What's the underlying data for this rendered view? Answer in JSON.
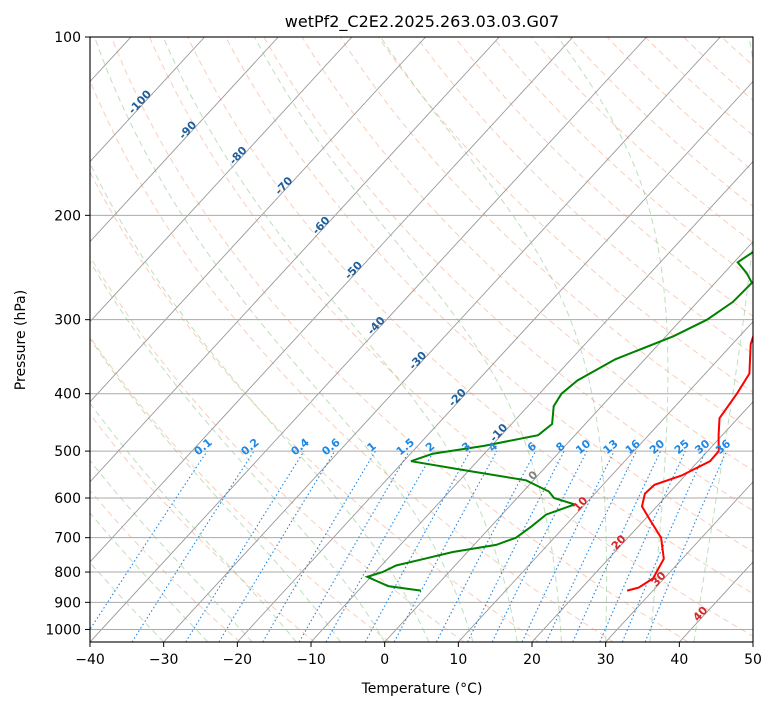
{
  "chart_data": {
    "type": "line",
    "title": "wetPf2_C2E2.2025.263.03.03.G07",
    "xlabel": "Temperature (°C)",
    "ylabel": "Pressure (hPa)",
    "xlim": [
      -40,
      50
    ],
    "ylim": [
      1050,
      100
    ],
    "x_ticks": [
      -40,
      -30,
      -20,
      -10,
      0,
      10,
      20,
      30,
      40,
      50
    ],
    "x_tick_labels": [
      "−40",
      "−30",
      "−20",
      "−10",
      "0",
      "10",
      "20",
      "30",
      "40",
      "50"
    ],
    "y_ticks": [
      100,
      200,
      300,
      400,
      500,
      600,
      700,
      800,
      900,
      1000
    ],
    "y_tick_labels": [
      "100",
      "200",
      "300",
      "400",
      "500",
      "600",
      "700",
      "800",
      "900",
      "1000"
    ],
    "series": [
      {
        "name": "Temperature",
        "color": "#ff0000",
        "points": [
          {
            "p": 860,
            "t": 26.5
          },
          {
            "p": 850,
            "t": 27.7
          },
          {
            "p": 820,
            "t": 28.5
          },
          {
            "p": 790,
            "t": 28.0
          },
          {
            "p": 760,
            "t": 27.5
          },
          {
            "p": 700,
            "t": 24.5
          },
          {
            "p": 650,
            "t": 20.5
          },
          {
            "p": 620,
            "t": 18.0
          },
          {
            "p": 590,
            "t": 16.8
          },
          {
            "p": 570,
            "t": 17.0
          },
          {
            "p": 550,
            "t": 19.5
          },
          {
            "p": 520,
            "t": 21.6
          },
          {
            "p": 500,
            "t": 21.5
          },
          {
            "p": 470,
            "t": 19.5
          },
          {
            "p": 440,
            "t": 17.5
          },
          {
            "p": 400,
            "t": 16.8
          },
          {
            "p": 370,
            "t": 16.0
          },
          {
            "p": 330,
            "t": 12.5
          },
          {
            "p": 300,
            "t": 10.5
          },
          {
            "p": 280,
            "t": 9.9
          },
          {
            "p": 260,
            "t": 9.0
          },
          {
            "p": 240,
            "t": 6.0
          },
          {
            "p": 220,
            "t": 3.0
          },
          {
            "p": 200,
            "t": 0.6
          },
          {
            "p": 180,
            "t": -1.8
          },
          {
            "p": 160,
            "t": -2.5
          },
          {
            "p": 150,
            "t": -2.0
          },
          {
            "p": 140,
            "t": -1.0
          },
          {
            "p": 130,
            "t": 0.5
          },
          {
            "p": 120,
            "t": 3.0
          },
          {
            "p": 110,
            "t": 6.0
          },
          {
            "p": 105,
            "t": 6.5
          },
          {
            "p": 100,
            "t": 7.5
          }
        ]
      },
      {
        "name": "Dewpoint",
        "color": "#008000",
        "points": [
          {
            "p": 860,
            "t": -1.5
          },
          {
            "p": 845,
            "t": -6.5
          },
          {
            "p": 830,
            "t": -8.5
          },
          {
            "p": 815,
            "t": -10.5
          },
          {
            "p": 800,
            "t": -9.0
          },
          {
            "p": 780,
            "t": -8.0
          },
          {
            "p": 760,
            "t": -5.0
          },
          {
            "p": 740,
            "t": -2.0
          },
          {
            "p": 720,
            "t": 3.0
          },
          {
            "p": 700,
            "t": 4.8
          },
          {
            "p": 670,
            "t": 5.5
          },
          {
            "p": 640,
            "t": 6.0
          },
          {
            "p": 615,
            "t": 8.6
          },
          {
            "p": 600,
            "t": 5.0
          },
          {
            "p": 585,
            "t": 3.5
          },
          {
            "p": 560,
            "t": -1.0
          },
          {
            "p": 540,
            "t": -10.0
          },
          {
            "p": 520,
            "t": -19.0
          },
          {
            "p": 505,
            "t": -17.0
          },
          {
            "p": 490,
            "t": -11.0
          },
          {
            "p": 470,
            "t": -5.0
          },
          {
            "p": 450,
            "t": -4.5
          },
          {
            "p": 420,
            "t": -6.5
          },
          {
            "p": 400,
            "t": -7.0
          },
          {
            "p": 380,
            "t": -6.5
          },
          {
            "p": 350,
            "t": -4.0
          },
          {
            "p": 320,
            "t": 1.0
          },
          {
            "p": 300,
            "t": 3.5
          },
          {
            "p": 280,
            "t": 4.8
          },
          {
            "p": 260,
            "t": 5.0
          },
          {
            "p": 250,
            "t": 3.0
          },
          {
            "p": 240,
            "t": 0.5
          },
          {
            "p": 225,
            "t": 1.8
          },
          {
            "p": 215,
            "t": 0.5
          },
          {
            "p": 200,
            "t": -1.5
          },
          {
            "p": 180,
            "t": -4.5
          },
          {
            "p": 170,
            "t": -5.5
          },
          {
            "p": 160,
            "t": -5.0
          },
          {
            "p": 150,
            "t": -4.0
          },
          {
            "p": 140,
            "t": -4.5
          },
          {
            "p": 130,
            "t": -4.5
          },
          {
            "p": 120,
            "t": -5.0
          },
          {
            "p": 110,
            "t": -3.0
          },
          {
            "p": 100,
            "t": -0.5
          }
        ]
      }
    ],
    "isotherm_labels": [
      {
        "t": -100,
        "label": "-100"
      },
      {
        "t": -90,
        "label": "-90"
      },
      {
        "t": -80,
        "label": "-80"
      },
      {
        "t": -70,
        "label": "-70"
      },
      {
        "t": -60,
        "label": "-60"
      },
      {
        "t": -50,
        "label": "-50"
      },
      {
        "t": -40,
        "label": "-40"
      },
      {
        "t": -30,
        "label": "-30"
      },
      {
        "t": -20,
        "label": "-20"
      },
      {
        "t": -10,
        "label": "-10"
      }
    ],
    "isotherm_labels_warm": [
      {
        "t": 0,
        "label": "0"
      },
      {
        "t": 10,
        "label": "10"
      },
      {
        "t": 20,
        "label": "20"
      },
      {
        "t": 30,
        "label": "30"
      },
      {
        "t": 40,
        "label": "40"
      }
    ],
    "mixing_ratios": [
      {
        "w": 0.1,
        "label": "0.1"
      },
      {
        "w": 0.2,
        "label": "0.2"
      },
      {
        "w": 0.4,
        "label": "0.4"
      },
      {
        "w": 0.6,
        "label": "0.6"
      },
      {
        "w": 1,
        "label": "1"
      },
      {
        "w": 1.5,
        "label": "1.5"
      },
      {
        "w": 2,
        "label": "2"
      },
      {
        "w": 3,
        "label": "3"
      },
      {
        "w": 4,
        "label": "4"
      },
      {
        "w": 6,
        "label": "6"
      },
      {
        "w": 8,
        "label": "8"
      },
      {
        "w": 10,
        "label": "10"
      },
      {
        "w": 13,
        "label": "13"
      },
      {
        "w": 16,
        "label": "16"
      },
      {
        "w": 20,
        "label": "20"
      },
      {
        "w": 25,
        "label": "25"
      },
      {
        "w": 30,
        "label": "30"
      },
      {
        "w": 36,
        "label": "36"
      }
    ],
    "grid": true
  }
}
